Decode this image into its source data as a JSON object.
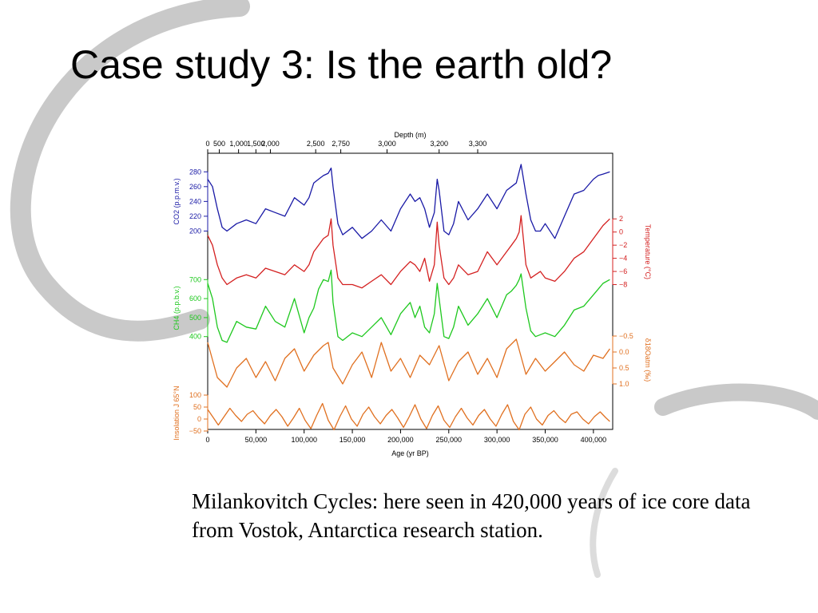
{
  "slide": {
    "title": "Case study 3: Is the earth old?",
    "caption": "Milankovitch Cycles: here seen in 420,000 years of ice core data from  Vostok, Antarctica research station."
  },
  "colors": {
    "co2": "#1a1aa6",
    "temperature": "#d42020",
    "ch4": "#1ec81e",
    "o18": "#e07020",
    "insolation": "#e07020",
    "swoosh": "#c9c9c9"
  },
  "chart_data": {
    "type": "line",
    "top_axis": {
      "label": "Depth (m)",
      "ticks": [
        {
          "age": 0,
          "label": "0"
        },
        {
          "age": 12000,
          "label": "500"
        },
        {
          "age": 32000,
          "label": "1,000"
        },
        {
          "age": 50000,
          "label": "1,500"
        },
        {
          "age": 65000,
          "label": "2,000"
        },
        {
          "age": 112000,
          "label": "2,500"
        },
        {
          "age": 138000,
          "label": "2,750"
        },
        {
          "age": 186000,
          "label": "3,000"
        },
        {
          "age": 240000,
          "label": "3,200"
        },
        {
          "age": 280000,
          "label": "3,300"
        }
      ]
    },
    "bottom_axis": {
      "label": "Age (yr BP)",
      "ticks": [
        "0",
        "50,000",
        "100,000",
        "150,000",
        "200,000",
        "250,000",
        "300,000",
        "350,000",
        "400,000"
      ],
      "tick_values": [
        0,
        50000,
        100000,
        150000,
        200000,
        250000,
        300000,
        350000,
        400000
      ],
      "xlim": [
        0,
        420000
      ]
    },
    "panels": [
      {
        "name": "CO2 (p.p.m.v.)",
        "side": "left",
        "color_key": "co2",
        "ylim": [
          180,
          290
        ],
        "ticks": [
          "200",
          "220",
          "240",
          "260",
          "280"
        ],
        "tick_values": [
          200,
          220,
          240,
          260,
          280
        ],
        "x": [
          0,
          5000,
          10000,
          15000,
          20000,
          30000,
          40000,
          50000,
          60000,
          70000,
          80000,
          90000,
          100000,
          105000,
          110000,
          115000,
          120000,
          125000,
          128000,
          130000,
          135000,
          140000,
          150000,
          160000,
          170000,
          180000,
          190000,
          200000,
          210000,
          215000,
          220000,
          225000,
          230000,
          235000,
          238000,
          240000,
          245000,
          250000,
          255000,
          260000,
          270000,
          280000,
          290000,
          300000,
          310000,
          315000,
          320000,
          323000,
          325000,
          330000,
          335000,
          340000,
          345000,
          350000,
          360000,
          370000,
          380000,
          390000,
          400000,
          405000,
          410000,
          417000
        ],
        "y": [
          270,
          260,
          230,
          205,
          200,
          210,
          215,
          210,
          230,
          225,
          220,
          245,
          235,
          245,
          265,
          270,
          275,
          278,
          285,
          260,
          210,
          195,
          205,
          190,
          200,
          215,
          200,
          230,
          250,
          240,
          245,
          230,
          205,
          225,
          270,
          255,
          200,
          195,
          210,
          240,
          215,
          230,
          250,
          230,
          255,
          260,
          265,
          280,
          290,
          250,
          215,
          200,
          200,
          210,
          190,
          220,
          250,
          255,
          270,
          275,
          277,
          280
        ]
      },
      {
        "name": "Temperature (°C)",
        "side": "right",
        "color_key": "temperature",
        "ylim": [
          -10,
          3
        ],
        "ticks": [
          "2",
          "0",
          "−2",
          "−4",
          "−6",
          "−8"
        ],
        "tick_values": [
          2,
          0,
          -2,
          -4,
          -6,
          -8
        ],
        "x": [
          0,
          5000,
          10000,
          15000,
          20000,
          30000,
          40000,
          50000,
          60000,
          70000,
          80000,
          90000,
          100000,
          105000,
          110000,
          115000,
          120000,
          125000,
          128000,
          130000,
          135000,
          140000,
          150000,
          160000,
          170000,
          180000,
          190000,
          200000,
          210000,
          215000,
          220000,
          225000,
          230000,
          235000,
          238000,
          240000,
          245000,
          250000,
          255000,
          260000,
          270000,
          280000,
          290000,
          300000,
          310000,
          315000,
          320000,
          323000,
          325000,
          330000,
          335000,
          340000,
          345000,
          350000,
          360000,
          370000,
          380000,
          390000,
          400000,
          405000,
          410000,
          417000
        ],
        "y": [
          -0.5,
          -2,
          -5,
          -7,
          -8,
          -7,
          -6.5,
          -7,
          -5.5,
          -6,
          -6.5,
          -5,
          -6,
          -5,
          -3,
          -2,
          -1,
          -0.5,
          2,
          -2,
          -7,
          -8,
          -8,
          -8.5,
          -7.5,
          -6.5,
          -8,
          -6,
          -4.5,
          -5,
          -6,
          -4,
          -7.5,
          -5,
          1.5,
          -2,
          -7,
          -8,
          -7,
          -5,
          -6.5,
          -6,
          -3,
          -5,
          -3,
          -2,
          -1,
          0,
          2.5,
          -5,
          -7,
          -6.5,
          -6,
          -7,
          -7.5,
          -6,
          -4,
          -3,
          -1,
          0,
          1,
          2
        ]
      },
      {
        "name": "CH4 (p.p.b.v.)",
        "side": "left",
        "color_key": "ch4",
        "ylim": [
          340,
          760
        ],
        "ticks": [
          "400",
          "500",
          "600",
          "700"
        ],
        "tick_values": [
          400,
          500,
          600,
          700
        ],
        "x": [
          0,
          5000,
          10000,
          15000,
          20000,
          30000,
          40000,
          50000,
          60000,
          70000,
          80000,
          90000,
          100000,
          105000,
          110000,
          115000,
          120000,
          125000,
          128000,
          130000,
          135000,
          140000,
          150000,
          160000,
          170000,
          180000,
          190000,
          200000,
          210000,
          215000,
          220000,
          225000,
          230000,
          235000,
          238000,
          240000,
          245000,
          250000,
          255000,
          260000,
          270000,
          280000,
          290000,
          300000,
          310000,
          315000,
          320000,
          323000,
          325000,
          330000,
          335000,
          340000,
          345000,
          350000,
          360000,
          370000,
          380000,
          390000,
          400000,
          405000,
          410000,
          417000
        ],
        "y": [
          680,
          600,
          450,
          380,
          370,
          480,
          450,
          440,
          560,
          480,
          450,
          600,
          420,
          500,
          550,
          650,
          700,
          690,
          750,
          580,
          400,
          380,
          420,
          400,
          450,
          500,
          410,
          520,
          580,
          500,
          560,
          450,
          420,
          520,
          680,
          600,
          400,
          390,
          450,
          560,
          460,
          520,
          600,
          500,
          620,
          640,
          670,
          700,
          730,
          550,
          430,
          400,
          410,
          420,
          400,
          460,
          540,
          560,
          620,
          650,
          680,
          700
        ]
      },
      {
        "name": "δ18Oatm (‰)",
        "side": "right",
        "color_key": "o18",
        "ylim": [
          1.3,
          -0.7
        ],
        "ticks": [
          "−0.5",
          "0.0",
          "0.5",
          "1.0"
        ],
        "tick_values": [
          -0.5,
          0,
          0.5,
          1
        ],
        "x": [
          0,
          10000,
          20000,
          30000,
          40000,
          50000,
          60000,
          70000,
          80000,
          90000,
          100000,
          110000,
          120000,
          125000,
          130000,
          140000,
          150000,
          160000,
          170000,
          180000,
          190000,
          200000,
          210000,
          220000,
          230000,
          240000,
          250000,
          260000,
          270000,
          280000,
          290000,
          300000,
          310000,
          320000,
          330000,
          340000,
          350000,
          360000,
          370000,
          380000,
          390000,
          400000,
          410000,
          417000
        ],
        "y": [
          -0.3,
          0.8,
          1.1,
          0.5,
          0.2,
          0.8,
          0.3,
          0.9,
          0.2,
          -0.1,
          0.6,
          0.1,
          -0.2,
          -0.3,
          0.5,
          1.0,
          0.4,
          0.0,
          0.8,
          -0.3,
          0.6,
          0.2,
          0.8,
          0.1,
          0.4,
          -0.2,
          0.9,
          0.3,
          0.0,
          0.7,
          0.2,
          0.8,
          -0.1,
          -0.4,
          0.7,
          0.2,
          0.6,
          0.3,
          0.0,
          0.4,
          0.6,
          0.1,
          0.2,
          -0.1
        ]
      },
      {
        "name": "Insolation J 65°N",
        "side": "left",
        "color_key": "insolation",
        "ylim": [
          -60,
          140
        ],
        "ticks": [
          "−50",
          "0",
          "50",
          "100"
        ],
        "tick_values": [
          -50,
          0,
          50,
          100
        ],
        "x": [
          0,
          6000,
          11000,
          17000,
          23000,
          29000,
          35000,
          41000,
          47000,
          53000,
          59000,
          65000,
          71000,
          77000,
          83000,
          89000,
          95000,
          101000,
          107000,
          113000,
          119000,
          125000,
          131000,
          137000,
          143000,
          149000,
          155000,
          161000,
          167000,
          173000,
          179000,
          185000,
          191000,
          197000,
          203000,
          209000,
          215000,
          221000,
          227000,
          233000,
          239000,
          245000,
          251000,
          257000,
          263000,
          269000,
          275000,
          281000,
          287000,
          293000,
          299000,
          305000,
          311000,
          317000,
          323000,
          329000,
          335000,
          341000,
          347000,
          353000,
          359000,
          365000,
          371000,
          377000,
          383000,
          389000,
          395000,
          401000,
          407000,
          413000,
          417000
        ],
        "y": [
          40,
          5,
          -25,
          10,
          45,
          15,
          -10,
          20,
          35,
          5,
          -20,
          15,
          40,
          10,
          -30,
          5,
          45,
          -5,
          -40,
          15,
          65,
          -5,
          -45,
          10,
          55,
          0,
          -30,
          20,
          50,
          10,
          -20,
          15,
          40,
          5,
          -35,
          10,
          60,
          0,
          -40,
          15,
          55,
          -5,
          -35,
          10,
          45,
          5,
          -25,
          15,
          40,
          0,
          -30,
          20,
          60,
          -10,
          -45,
          20,
          50,
          0,
          -25,
          15,
          35,
          5,
          -15,
          20,
          30,
          0,
          -20,
          10,
          30,
          5,
          -10
        ]
      }
    ]
  }
}
